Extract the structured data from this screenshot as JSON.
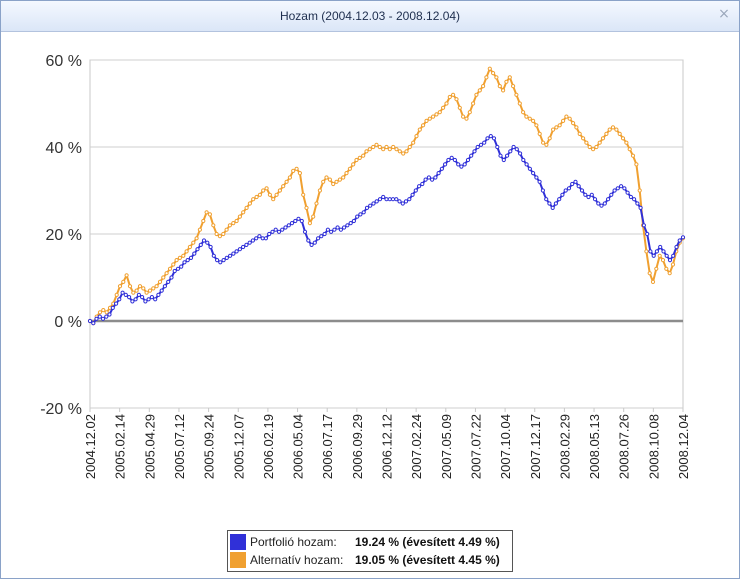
{
  "window": {
    "title": "Hozam (2004.12.03 - 2008.12.04)",
    "close_glyph": "×"
  },
  "chart_data": {
    "type": "line",
    "ylim": [
      -20,
      60
    ],
    "yticks": [
      "-20 %",
      "0 %",
      "20 %",
      "40 %",
      "60 %"
    ],
    "ytick_values": [
      -20,
      0,
      20,
      40,
      60
    ],
    "xticks": [
      "2004.12.02",
      "2005.02.14",
      "2005.04.29",
      "2005.07.12",
      "2005.09.24",
      "2005.12.07",
      "2006.02.19",
      "2006.05.04",
      "2006.07.17",
      "2006.09.29",
      "2006.12.12",
      "2007.02.24",
      "2007.05.09",
      "2007.07.22",
      "2007.10.04",
      "2007.12.17",
      "2008.02.29",
      "2008.05.13",
      "2008.07.26",
      "2008.10.08",
      "2008.12.04"
    ],
    "grid": true,
    "legend_placement": "bottom",
    "series": [
      {
        "name": "Portfolió hozam:",
        "color": "#3030d8",
        "summary": "19.24 % (évesített 4.49 %)",
        "values": [
          0,
          -0.5,
          0.5,
          1,
          0.5,
          1,
          1.5,
          3,
          4,
          5,
          6.5,
          6,
          5.5,
          4.5,
          5,
          6,
          5.5,
          4.5,
          5,
          5.5,
          5,
          6,
          7,
          8,
          9,
          10,
          11.5,
          12,
          12.5,
          13.5,
          14,
          14.5,
          15.5,
          16.5,
          17.5,
          18.5,
          18,
          17,
          15,
          14,
          13.5,
          14,
          14.5,
          15,
          15.5,
          16,
          16.5,
          17,
          17.5,
          18,
          18.5,
          19,
          19.5,
          19,
          19,
          20,
          20.5,
          21,
          20.5,
          21,
          21.5,
          22,
          22.5,
          23,
          23.5,
          23,
          20.5,
          18.5,
          17.5,
          18,
          19,
          19.5,
          20,
          21,
          20.5,
          21,
          21.5,
          21,
          21.5,
          22,
          22.5,
          23,
          24,
          24.5,
          25,
          26,
          26.5,
          27,
          27.5,
          28,
          28.5,
          28,
          28,
          28,
          28,
          27.5,
          27,
          27.5,
          28,
          29,
          30,
          31,
          31.5,
          32.5,
          33,
          32.5,
          33,
          34,
          35,
          36,
          37,
          37.5,
          37,
          36,
          35.5,
          36,
          37,
          38,
          39,
          40,
          40.5,
          41,
          42,
          42.5,
          42,
          40,
          38,
          37,
          38,
          39,
          40,
          39.5,
          38.5,
          37,
          36,
          35,
          34,
          33,
          32,
          30,
          28,
          27,
          26,
          27,
          28,
          29,
          30,
          30.5,
          31.5,
          32,
          31,
          30,
          29,
          28.5,
          29,
          28,
          27,
          26.5,
          27,
          28,
          29,
          30,
          30.5,
          31,
          30.5,
          29.5,
          28.5,
          28,
          27,
          26,
          22,
          20,
          16,
          15,
          16,
          17,
          16,
          15,
          14,
          15,
          17,
          18.5,
          19.24
        ]
      },
      {
        "name": "Alternatív hozam:",
        "color": "#f0a030",
        "summary": "19.05 % (évesített 4.45 %)",
        "values": [
          0,
          -0.5,
          1,
          2,
          2.5,
          2,
          3,
          4,
          6,
          8,
          9,
          10.5,
          8,
          6.5,
          7,
          8,
          7.5,
          6.5,
          7,
          7.5,
          8,
          9,
          10,
          11,
          12,
          13,
          14,
          14.5,
          15,
          16,
          17,
          18,
          19,
          21,
          23,
          25,
          24.5,
          22,
          20,
          19.5,
          20,
          21,
          22,
          22.5,
          23,
          24,
          25,
          26,
          27,
          28,
          28.5,
          29,
          30,
          30.5,
          29,
          28,
          29,
          30,
          31,
          32,
          33,
          34.5,
          35,
          34,
          29,
          26,
          22.5,
          24,
          27,
          30,
          32,
          33,
          32.5,
          31.5,
          32,
          32.5,
          33,
          34,
          35,
          36,
          37,
          37.5,
          38,
          39,
          39.5,
          40,
          40.5,
          40,
          39.5,
          40,
          39.5,
          40,
          39.5,
          39,
          38.5,
          39,
          40,
          41,
          42.5,
          44,
          45,
          46,
          46.5,
          47,
          47.5,
          48,
          49,
          50,
          51.5,
          52,
          51,
          49,
          47,
          46.5,
          48,
          50,
          52,
          53,
          54,
          56,
          58,
          57,
          56,
          54,
          53,
          55,
          56,
          54,
          52,
          50,
          48,
          47,
          46.5,
          46,
          45,
          43,
          41,
          40.5,
          42,
          44,
          44.5,
          45,
          46,
          47,
          46.5,
          45.5,
          44.5,
          43,
          42,
          41,
          40,
          39.5,
          40,
          41,
          42,
          43,
          44,
          44.5,
          44,
          43,
          42,
          41,
          39.5,
          38,
          36,
          30,
          22,
          16,
          11,
          9,
          12,
          15,
          14,
          12,
          11,
          13,
          16,
          18,
          19.05
        ]
      }
    ]
  }
}
